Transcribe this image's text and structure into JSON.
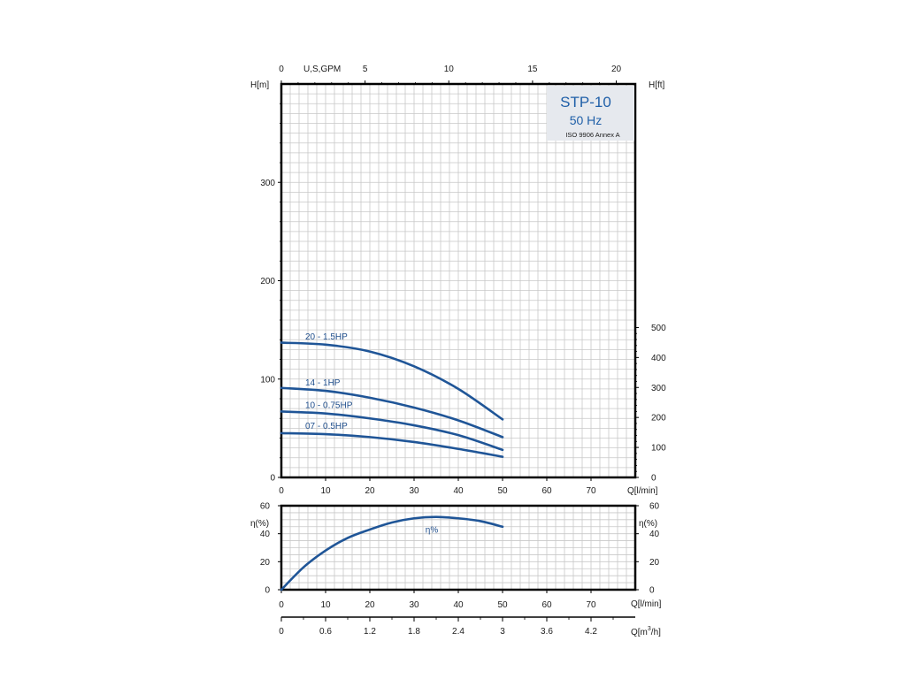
{
  "colors": {
    "curve": "#1f5597",
    "grid": "#c8c8c8",
    "frame": "#000000",
    "label": "#1f4e8c",
    "info_box": "#e6e9ee"
  },
  "info_box": {
    "model": "STP-10",
    "freq": "50 Hz",
    "standard": "ISO 9906 Annex A"
  },
  "chart_data": [
    {
      "type": "line",
      "name_axis_left": "H[m]",
      "name_axis_right": "H[ft]",
      "xlabel": "Q[l/min]",
      "top_axis_label": "U,S,GPM",
      "xlim": [
        0,
        80
      ],
      "ylim": [
        0,
        400
      ],
      "x_ticks": [
        "10",
        "20",
        "30",
        "40",
        "50",
        "60",
        "70"
      ],
      "x_tick_values": [
        10,
        20,
        30,
        40,
        50,
        60,
        70
      ],
      "x_origin_label": "0",
      "y_ticks": [
        "0",
        "100",
        "200",
        "300"
      ],
      "y_tick_values": [
        0,
        100,
        200,
        300
      ],
      "right_ticks": [
        "0",
        "100",
        "200",
        "300",
        "400",
        "500"
      ],
      "right_tick_values_ft": [
        0,
        100,
        200,
        300,
        400,
        500
      ],
      "top_ticks": [
        "0",
        "5",
        "10",
        "15",
        "20"
      ],
      "top_tick_values_gpm": [
        0,
        5,
        10,
        15,
        20
      ],
      "series": [
        {
          "name": "20 - 1.5HP",
          "x": [
            0,
            10,
            20,
            30,
            40,
            50
          ],
          "y": [
            137,
            135,
            128,
            113,
            90,
            59
          ]
        },
        {
          "name": "14 - 1HP",
          "x": [
            0,
            10,
            20,
            30,
            40,
            50
          ],
          "y": [
            91,
            88,
            81,
            71,
            58,
            41
          ]
        },
        {
          "name": "10 - 0.75HP",
          "x": [
            0,
            10,
            20,
            30,
            40,
            50
          ],
          "y": [
            67,
            65,
            60,
            53,
            43,
            28
          ]
        },
        {
          "name": "07 - 0.5HP",
          "x": [
            0,
            10,
            20,
            30,
            40,
            50
          ],
          "y": [
            45,
            44,
            41,
            36,
            29,
            21
          ]
        }
      ]
    },
    {
      "type": "line",
      "ylabel_left": "η(%)",
      "ylabel_right": "η(%)",
      "xlabel": "Q[l/min]",
      "xlim": [
        0,
        80
      ],
      "ylim": [
        0,
        60
      ],
      "x_ticks": [
        "0",
        "10",
        "20",
        "30",
        "40",
        "50",
        "60",
        "70"
      ],
      "x_tick_values": [
        0,
        10,
        20,
        30,
        40,
        50,
        60,
        70
      ],
      "y_ticks": [
        "0",
        "20",
        "40",
        "60"
      ],
      "y_tick_values": [
        0,
        20,
        40,
        60
      ],
      "series": [
        {
          "name": "η%",
          "x": [
            0,
            5,
            10,
            15,
            20,
            25,
            30,
            35,
            40,
            45,
            50
          ],
          "y": [
            0,
            16,
            28,
            37,
            43,
            48,
            51,
            52,
            51,
            49,
            45
          ]
        }
      ]
    }
  ],
  "bottom_axis": {
    "label": "Q[m³/h]",
    "label_main": "Q[m",
    "label_sup": "3",
    "label_end": "/h]",
    "ticks": [
      "0",
      "0.6",
      "1.2",
      "1.8",
      "2.4",
      "3",
      "3.6",
      "4.2"
    ],
    "tick_values_m3h": [
      0,
      0.6,
      1.2,
      1.8,
      2.4,
      3,
      3.6,
      4.2
    ]
  }
}
